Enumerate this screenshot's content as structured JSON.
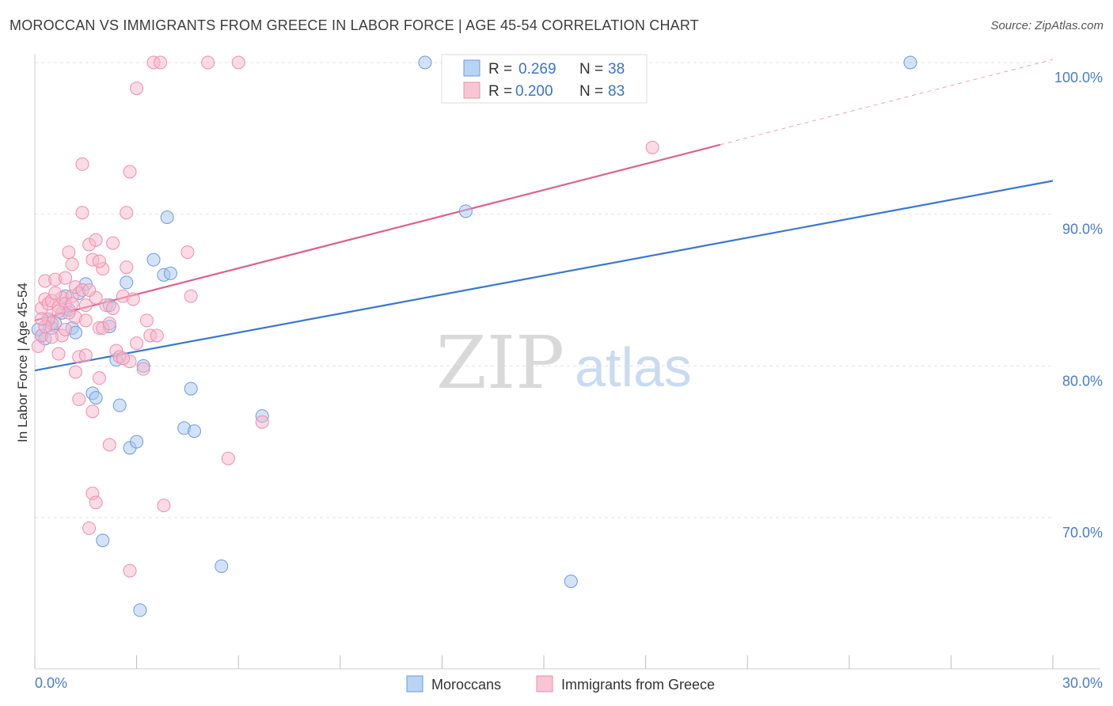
{
  "title": "MOROCCAN VS IMMIGRANTS FROM GREECE IN LABOR FORCE | AGE 45-54 CORRELATION CHART",
  "source": "Source: ZipAtlas.com",
  "watermark": {
    "zip": "ZIP",
    "atlas": "atlas"
  },
  "chart_data": {
    "type": "scatter",
    "title": "MOROCCAN VS IMMIGRANTS FROM GREECE IN LABOR FORCE | AGE 45-54 CORRELATION CHART",
    "xlabel": "",
    "ylabel": "In Labor Force | Age 45-54",
    "xlim": [
      0,
      30
    ],
    "ylim": [
      61,
      101
    ],
    "x_ticks": [
      0,
      3,
      6,
      9,
      12,
      15,
      18,
      21,
      24,
      27,
      30
    ],
    "x_tick_labels": {
      "left": "0.0%",
      "right": "30.0%"
    },
    "y_ticks": [
      100,
      90,
      80,
      70
    ],
    "y_tick_labels": [
      "100.0%",
      "90.0%",
      "80.0%",
      "70.0%"
    ],
    "legend": {
      "placement": "top-center",
      "rows": [
        {
          "r_label": "R =",
          "r_value": "0.269",
          "n_label": "N =",
          "n_value": "38"
        },
        {
          "r_label": "R =",
          "r_value": "0.200",
          "n_label": "N =",
          "n_value": "83"
        }
      ]
    },
    "series": [
      {
        "name": "Moroccans",
        "color": "#a8c8f0",
        "stroke": "#6a9be0",
        "line_color": "#3a78d0",
        "trend": {
          "x0": 0,
          "y0": 79.7,
          "x1": 30,
          "y1": 92.2,
          "solid_until": 30
        },
        "points": [
          [
            0.1,
            82.4
          ],
          [
            0.2,
            82.0
          ],
          [
            0.3,
            81.8
          ],
          [
            0.4,
            83.0
          ],
          [
            0.5,
            82.5
          ],
          [
            0.6,
            82.8
          ],
          [
            0.8,
            83.5
          ],
          [
            1.0,
            83.7
          ],
          [
            1.1,
            82.5
          ],
          [
            1.2,
            82.2
          ],
          [
            1.5,
            85.4
          ],
          [
            1.7,
            78.2
          ],
          [
            1.8,
            77.9
          ],
          [
            2.2,
            84.0
          ],
          [
            2.2,
            82.6
          ],
          [
            2.4,
            80.4
          ],
          [
            2.5,
            77.4
          ],
          [
            2.7,
            85.5
          ],
          [
            2.8,
            74.6
          ],
          [
            3.0,
            75.0
          ],
          [
            3.2,
            80.0
          ],
          [
            3.5,
            87.0
          ],
          [
            3.8,
            86.0
          ],
          [
            3.9,
            89.8
          ],
          [
            4.0,
            86.1
          ],
          [
            4.4,
            75.9
          ],
          [
            4.6,
            78.5
          ],
          [
            4.7,
            75.7
          ],
          [
            2.0,
            68.5
          ],
          [
            5.5,
            66.8
          ],
          [
            3.1,
            63.9
          ],
          [
            6.7,
            76.7
          ],
          [
            11.5,
            100.0
          ],
          [
            12.7,
            90.2
          ],
          [
            15.8,
            65.8
          ],
          [
            25.8,
            100.0
          ],
          [
            0.9,
            84.6
          ],
          [
            1.3,
            84.8
          ]
        ]
      },
      {
        "name": "Immigrants from Greece",
        "color": "#f7b8cb",
        "stroke": "#ee8eaa",
        "line_color": "#e0608a",
        "trend": {
          "x0": 0,
          "y0": 83.0,
          "x1": 30,
          "y1": 100.2,
          "solid_until": 20.2
        },
        "points": [
          [
            0.1,
            81.3
          ],
          [
            0.2,
            82.0
          ],
          [
            0.2,
            83.8
          ],
          [
            0.3,
            84.4
          ],
          [
            0.3,
            85.6
          ],
          [
            0.4,
            84.1
          ],
          [
            0.5,
            84.3
          ],
          [
            0.5,
            82.8
          ],
          [
            0.6,
            85.7
          ],
          [
            0.7,
            83.9
          ],
          [
            0.7,
            80.8
          ],
          [
            0.8,
            84.5
          ],
          [
            0.9,
            85.8
          ],
          [
            0.9,
            84.1
          ],
          [
            1.0,
            87.5
          ],
          [
            1.1,
            86.7
          ],
          [
            1.1,
            84.6
          ],
          [
            1.2,
            85.2
          ],
          [
            1.2,
            83.2
          ],
          [
            1.3,
            80.6
          ],
          [
            1.4,
            85.0
          ],
          [
            1.5,
            80.7
          ],
          [
            1.5,
            84.0
          ],
          [
            1.6,
            88.0
          ],
          [
            1.7,
            87.0
          ],
          [
            1.8,
            88.3
          ],
          [
            1.8,
            84.5
          ],
          [
            1.9,
            82.5
          ],
          [
            2.0,
            86.4
          ],
          [
            2.0,
            82.5
          ],
          [
            2.1,
            84.0
          ],
          [
            2.2,
            82.8
          ],
          [
            2.3,
            83.8
          ],
          [
            2.4,
            81.0
          ],
          [
            2.5,
            80.6
          ],
          [
            2.6,
            84.6
          ],
          [
            2.7,
            86.5
          ],
          [
            2.8,
            80.3
          ],
          [
            3.0,
            81.5
          ],
          [
            3.2,
            79.8
          ],
          [
            3.3,
            83.0
          ],
          [
            3.4,
            82.0
          ],
          [
            3.5,
            100.0
          ],
          [
            3.7,
            100.0
          ],
          [
            5.1,
            100.0
          ],
          [
            6.0,
            100.0
          ],
          [
            3.0,
            98.3
          ],
          [
            1.4,
            93.3
          ],
          [
            2.8,
            92.8
          ],
          [
            1.4,
            90.1
          ],
          [
            2.7,
            90.1
          ],
          [
            4.5,
            87.5
          ],
          [
            4.6,
            84.6
          ],
          [
            1.3,
            77.8
          ],
          [
            1.7,
            77.0
          ],
          [
            2.2,
            74.8
          ],
          [
            1.7,
            71.6
          ],
          [
            1.8,
            71.0
          ],
          [
            1.6,
            69.3
          ],
          [
            3.8,
            70.8
          ],
          [
            2.8,
            66.5
          ],
          [
            5.7,
            73.9
          ],
          [
            6.7,
            76.3
          ],
          [
            18.2,
            94.4
          ],
          [
            1.2,
            79.6
          ],
          [
            1.9,
            79.2
          ],
          [
            0.6,
            84.8
          ],
          [
            0.4,
            83.1
          ],
          [
            1.0,
            83.5
          ],
          [
            0.8,
            82.0
          ],
          [
            2.3,
            88.1
          ],
          [
            1.6,
            85.0
          ],
          [
            0.5,
            81.9
          ],
          [
            3.6,
            82.0
          ],
          [
            0.3,
            82.6
          ],
          [
            1.1,
            84.1
          ],
          [
            2.9,
            84.4
          ],
          [
            0.7,
            83.6
          ],
          [
            1.9,
            86.9
          ],
          [
            0.9,
            82.4
          ],
          [
            1.5,
            83.0
          ],
          [
            0.2,
            83.1
          ],
          [
            2.6,
            80.5
          ]
        ]
      }
    ]
  },
  "bottom_legend": [
    "Moroccans",
    "Immigrants from Greece"
  ]
}
